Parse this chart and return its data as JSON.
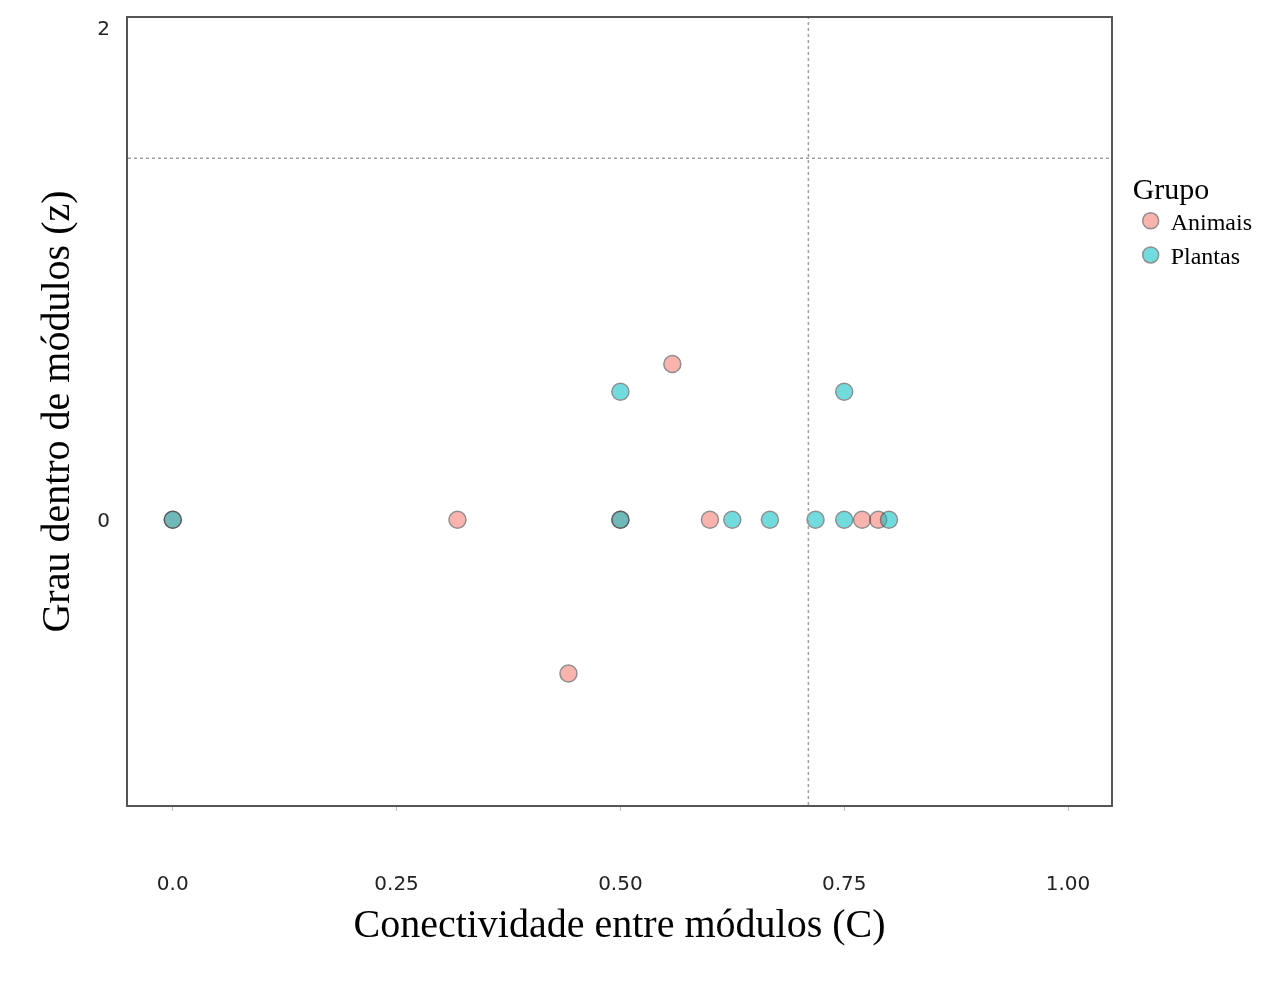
{
  "chart_data": {
    "type": "scatter",
    "xlabel": "Conectividade entre módulos (C)",
    "ylabel": "Grau dentro de módulos (z)",
    "legend_title": "Grupo",
    "legend": "right",
    "marker": "circle",
    "xlim": [
      -0.05,
      1.048
    ],
    "xticks": [
      {
        "value": 0,
        "label": "0.0"
      },
      0.25,
      {
        "value": 0.5,
        "label": "0.50"
      },
      {
        "value": 0.75,
        "label": "0.75"
      },
      {
        "value": 1,
        "label": "1.00"
      }
    ],
    "ylim": [
      -1.16,
      2.04
    ],
    "yticks": [
      0,
      2
    ],
    "ref_lines": [
      {
        "axis": "x",
        "value": 0.71,
        "color": "#a0a0a0",
        "line_style": "dotted"
      },
      {
        "axis": "y",
        "value": 1.47,
        "color": "#a0a0a0",
        "line_style": "dotted"
      }
    ],
    "series": [
      {
        "name": "Animais",
        "color": "#f8766d",
        "x": [
          0,
          0.318,
          0.442,
          0.5,
          0.558,
          0.6,
          0.77,
          0.788
        ],
        "values": [
          0,
          0,
          -0.625,
          0,
          0.633,
          0,
          0,
          0
        ]
      },
      {
        "name": "Plantas",
        "color": "#00bfc4",
        "x": [
          0,
          0.5,
          0.5,
          0.625,
          0.667,
          0.718,
          0.75,
          0.75,
          0.8
        ],
        "values": [
          0,
          0,
          0.52,
          0,
          0,
          0,
          0,
          0.52,
          0
        ]
      }
    ]
  }
}
